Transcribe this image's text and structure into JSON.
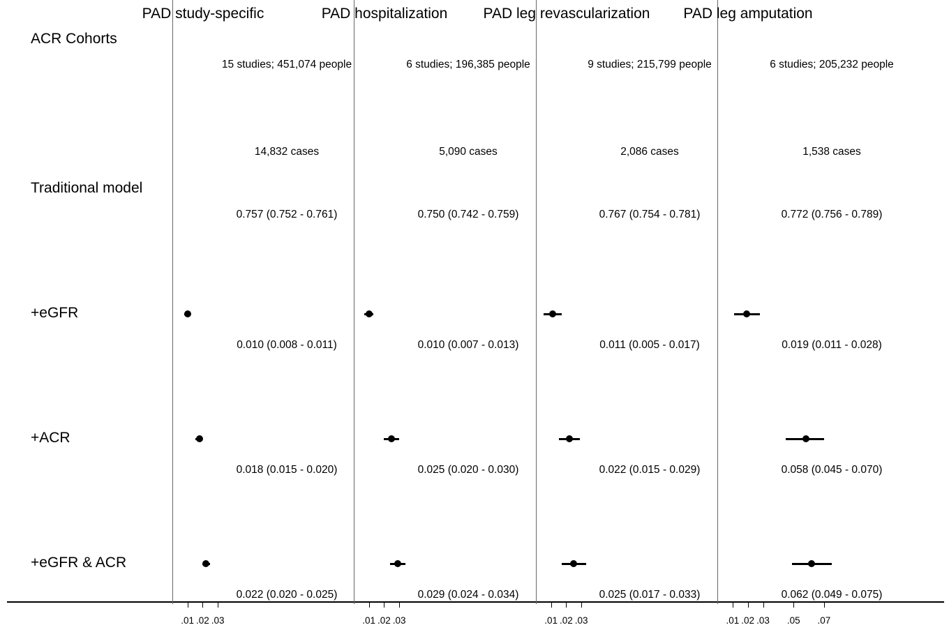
{
  "chart_data": {
    "type": "forest",
    "row_labels": {
      "cohorts": "ACR Cohorts",
      "traditional": "Traditional model",
      "egfr": "+eGFR",
      "acr": "+ACR",
      "both": "+eGFR & ACR"
    },
    "x_tick_labels_small": [
      ".01",
      ".02",
      ".03"
    ],
    "x_tick_labels_amputation": [
      ".01",
      ".02",
      ".03",
      ".05",
      ".07"
    ],
    "x_ticks_small": [
      0.01,
      0.02,
      0.03
    ],
    "x_ticks_amputation": [
      0.01,
      0.02,
      0.03,
      0.05,
      0.07
    ],
    "panels": [
      {
        "title": "PAD study-specific",
        "studies": "15 studies; 451,074 people",
        "cases": "14,832 cases",
        "traditional": "0.757 (0.752 - 0.761)",
        "rows": [
          {
            "label_text": "0.010 (0.008 - 0.011)",
            "est": 0.01,
            "lo": 0.008,
            "hi": 0.011
          },
          {
            "label_text": "0.018 (0.015 - 0.020)",
            "est": 0.018,
            "lo": 0.015,
            "hi": 0.02
          },
          {
            "label_text": "0.022 (0.020 - 0.025)",
            "est": 0.022,
            "lo": 0.02,
            "hi": 0.025
          }
        ]
      },
      {
        "title": "PAD hospitalization",
        "studies": "6 studies; 196,385 people",
        "cases": "5,090 cases",
        "traditional": "0.750 (0.742 - 0.759)",
        "rows": [
          {
            "label_text": "0.010 (0.007 - 0.013)",
            "est": 0.01,
            "lo": 0.007,
            "hi": 0.013
          },
          {
            "label_text": "0.025 (0.020 - 0.030)",
            "est": 0.025,
            "lo": 0.02,
            "hi": 0.03
          },
          {
            "label_text": "0.029 (0.024 - 0.034)",
            "est": 0.029,
            "lo": 0.024,
            "hi": 0.034
          }
        ]
      },
      {
        "title": "PAD leg revascularization",
        "studies": "9 studies; 215,799 people",
        "cases": "2,086 cases",
        "traditional": "0.767 (0.754 - 0.781)",
        "rows": [
          {
            "label_text": "0.011 (0.005 - 0.017)",
            "est": 0.011,
            "lo": 0.005,
            "hi": 0.017
          },
          {
            "label_text": "0.022 (0.015 - 0.029)",
            "est": 0.022,
            "lo": 0.015,
            "hi": 0.029
          },
          {
            "label_text": "0.025 (0.017 - 0.033)",
            "est": 0.025,
            "lo": 0.017,
            "hi": 0.033
          }
        ]
      },
      {
        "title": "PAD leg amputation",
        "studies": "6 studies; 205,232 people",
        "cases": "1,538 cases",
        "traditional": "0.772 (0.756 - 0.789)",
        "rows": [
          {
            "label_text": "0.019 (0.011 - 0.028)",
            "est": 0.019,
            "lo": 0.011,
            "hi": 0.028
          },
          {
            "label_text": "0.058 (0.045 - 0.070)",
            "est": 0.058,
            "lo": 0.045,
            "hi": 0.07
          },
          {
            "label_text": "0.062 (0.049 - 0.075)",
            "est": 0.062,
            "lo": 0.049,
            "hi": 0.075
          }
        ]
      }
    ]
  }
}
